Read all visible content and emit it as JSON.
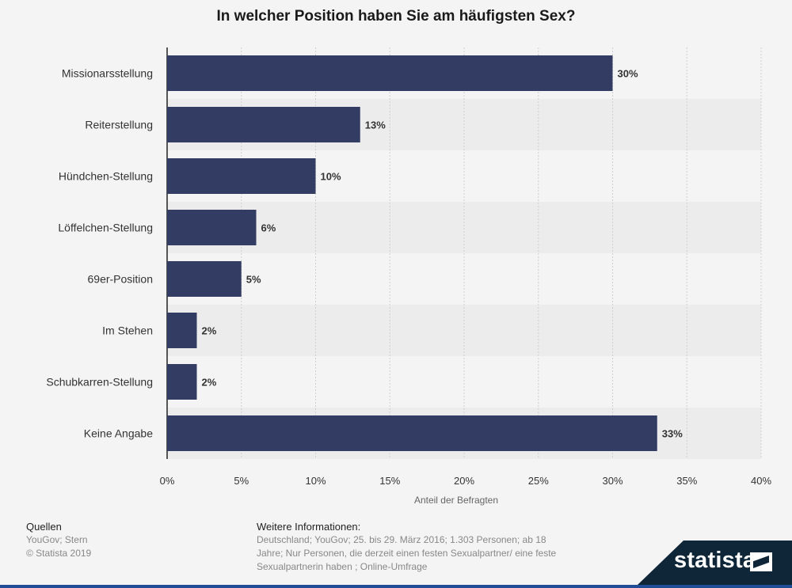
{
  "title": "In welcher Position haben Sie am häufigsten Sex?",
  "chart_data": {
    "type": "bar",
    "orientation": "horizontal",
    "categories": [
      "Missionarsstellung",
      "Reiterstellung",
      "Hündchen-Stellung",
      "Löffelchen-Stellung",
      "69er-Position",
      "Im Stehen",
      "Schubkarren-Stellung",
      "Keine Angabe"
    ],
    "values": [
      30,
      13,
      10,
      6,
      5,
      2,
      2,
      33
    ],
    "value_labels": [
      "30%",
      "13%",
      "10%",
      "6%",
      "5%",
      "2%",
      "2%",
      "33%"
    ],
    "xlabel": "Anteil der Befragten",
    "xlim": [
      0,
      40
    ],
    "x_ticks": [
      0,
      5,
      10,
      15,
      20,
      25,
      30,
      35,
      40
    ],
    "x_tick_labels": [
      "0%",
      "5%",
      "10%",
      "15%",
      "20%",
      "25%",
      "30%",
      "35%",
      "40%"
    ],
    "grid": true,
    "bar_color": "#333c62"
  },
  "footer": {
    "sources_heading": "Quellen",
    "sources": [
      "YouGov; Stern",
      "© Statista 2019"
    ],
    "info_heading": "Weitere Informationen:",
    "info_text": "Deutschland; YouGov; 25. bis 29. März 2016; 1.303 Personen; ab 18 Jahre; Nur Personen, die derzeit einen festen Sexualpartner/ eine feste Sexualpartnerin haben ; Online-Umfrage"
  },
  "brand": {
    "name": "statista"
  }
}
